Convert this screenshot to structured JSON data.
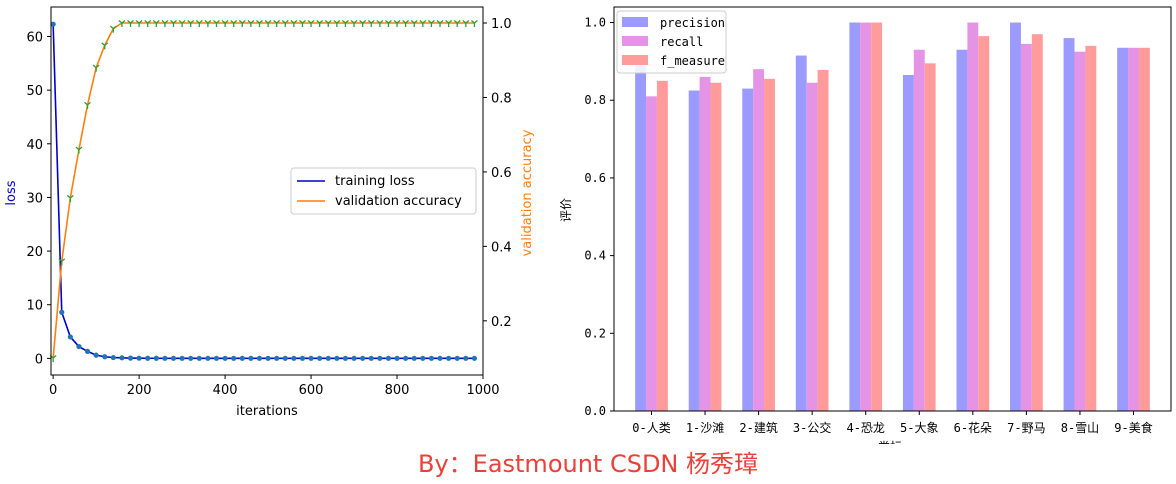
{
  "chart_data": [
    {
      "type": "line",
      "title": "",
      "xlabel": "iterations",
      "ylabel_left": "loss",
      "ylabel_right": "validation accuracy",
      "xlim": [
        -5,
        1000
      ],
      "ylim_left": [
        -3.1,
        65.5
      ],
      "ylim_right": [
        0.0545,
        1.043
      ],
      "xticks": [
        "0",
        "200",
        "400",
        "600",
        "800",
        "1000"
      ],
      "yticks_left": [
        "0",
        "10",
        "20",
        "30",
        "40",
        "50",
        "60"
      ],
      "yticks_right": [
        "0.2",
        "0.4",
        "0.6",
        "0.8",
        "1.0"
      ],
      "legend_position": "center-right",
      "series": [
        {
          "name": "training loss",
          "axis": "left",
          "color": "#0000cc",
          "marker_color": "#1f77b4",
          "x": [
            0,
            20,
            40,
            60,
            80,
            100,
            120,
            140,
            160,
            180,
            200,
            220,
            240,
            260,
            280,
            300,
            320,
            340,
            360,
            380,
            400,
            420,
            440,
            460,
            480,
            500,
            520,
            540,
            560,
            580,
            600,
            620,
            640,
            660,
            680,
            700,
            720,
            740,
            760,
            780,
            800,
            820,
            840,
            860,
            880,
            900,
            920,
            940,
            960,
            980
          ],
          "values": [
            62.3,
            8.6,
            4.0,
            2.2,
            1.3,
            0.6,
            0.3,
            0.15,
            0.1,
            0.05,
            0.03,
            0.02,
            0.02,
            0.01,
            0.01,
            0.01,
            0.01,
            0.01,
            0.01,
            0.01,
            0.01,
            0.01,
            0.01,
            0.01,
            0.01,
            0.01,
            0.01,
            0.01,
            0.01,
            0.01,
            0.01,
            0.01,
            0.01,
            0.01,
            0.01,
            0.01,
            0.01,
            0.01,
            0.01,
            0.01,
            0.01,
            0.01,
            0.01,
            0.01,
            0.01,
            0.01,
            0.01,
            0.01,
            0.01,
            0.01
          ]
        },
        {
          "name": "validation accuracy",
          "axis": "right",
          "color": "#ff7f0e",
          "marker_color": "#2ca02c",
          "x": [
            0,
            20,
            40,
            60,
            80,
            100,
            120,
            140,
            160,
            180,
            200,
            220,
            240,
            260,
            280,
            300,
            320,
            340,
            360,
            380,
            400,
            420,
            440,
            460,
            480,
            500,
            520,
            540,
            560,
            580,
            600,
            620,
            640,
            660,
            680,
            700,
            720,
            740,
            760,
            780,
            800,
            820,
            840,
            860,
            880,
            900,
            920,
            940,
            960,
            980
          ],
          "values": [
            0.1,
            0.36,
            0.53,
            0.66,
            0.78,
            0.88,
            0.94,
            0.985,
            1.0,
            1.0,
            1.0,
            1.0,
            1.0,
            1.0,
            1.0,
            1.0,
            1.0,
            1.0,
            1.0,
            1.0,
            1.0,
            1.0,
            1.0,
            1.0,
            1.0,
            1.0,
            1.0,
            1.0,
            1.0,
            1.0,
            1.0,
            1.0,
            1.0,
            1.0,
            1.0,
            1.0,
            1.0,
            1.0,
            1.0,
            1.0,
            1.0,
            1.0,
            1.0,
            1.0,
            1.0,
            1.0,
            1.0,
            1.0,
            1.0,
            1.0
          ]
        }
      ]
    },
    {
      "type": "bar",
      "title": "",
      "xlabel": "类标",
      "ylabel": "评价",
      "ylim": [
        0,
        1.04
      ],
      "yticks": [
        "0.0",
        "0.2",
        "0.4",
        "0.6",
        "0.8",
        "1.0"
      ],
      "categories": [
        "0-人类",
        "1-沙滩",
        "2-建筑",
        "3-公交",
        "4-恐龙",
        "5-大象",
        "6-花朵",
        "7-野马",
        "8-雪山",
        "9-美食"
      ],
      "legend_position": "top-left",
      "series": [
        {
          "name": "precision",
          "color": "#9b9bff",
          "values": [
            0.89,
            0.825,
            0.83,
            0.915,
            1.0,
            0.865,
            0.93,
            1.0,
            0.96,
            0.935
          ]
        },
        {
          "name": "recall",
          "color": "#e594e5",
          "values": [
            0.81,
            0.86,
            0.88,
            0.845,
            1.0,
            0.93,
            1.0,
            0.945,
            0.925,
            0.935
          ]
        },
        {
          "name": "f_measure",
          "color": "#ff9b9b",
          "values": [
            0.85,
            0.845,
            0.855,
            0.878,
            1.0,
            0.895,
            0.965,
            0.97,
            0.94,
            0.935
          ]
        }
      ]
    }
  ],
  "footer": "By：Eastmount CSDN 杨秀璋"
}
